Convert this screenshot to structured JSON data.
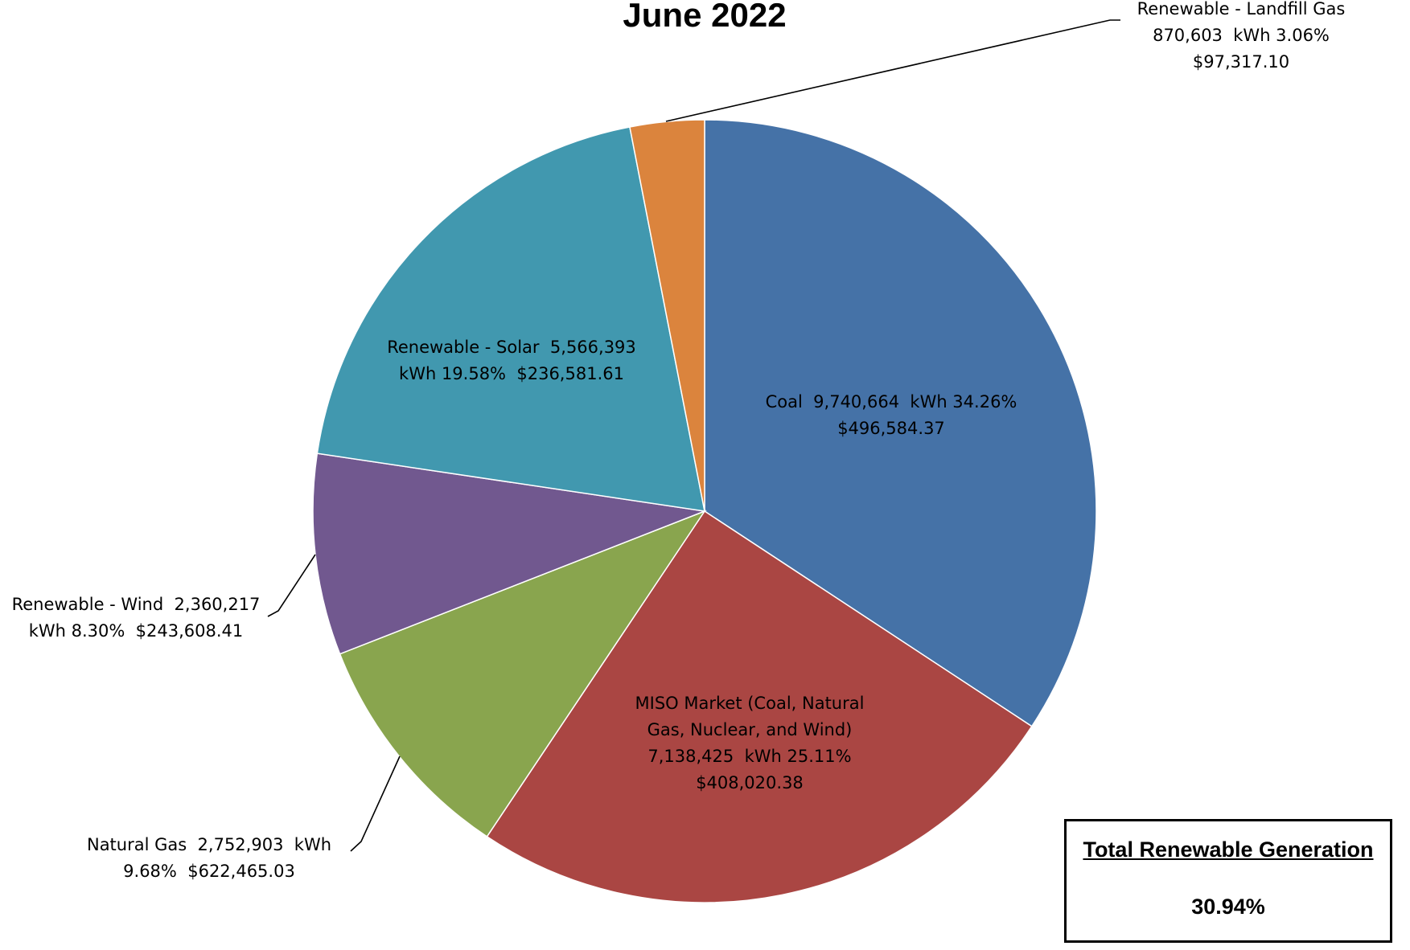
{
  "chart_data": {
    "type": "pie",
    "title": "June 2022",
    "start_angle_deg": 0,
    "direction": "clockwise",
    "slices": [
      {
        "name": "Coal",
        "kwh": "9,740,664",
        "percent": 34.26,
        "percent_label": "34.26%",
        "cost": "$496,584.37",
        "color": "#4572A7",
        "label_lines": [
          "Coal  9,740,664  kWh 34.26%",
          "$496,584.37"
        ]
      },
      {
        "name": "MISO Market (Coal, Natural Gas, Nuclear, and Wind)",
        "kwh": "7,138,425",
        "percent": 25.11,
        "percent_label": "25.11%",
        "cost": "$408,020.38",
        "color": "#AA4643",
        "label_lines": [
          "MISO Market (Coal, Natural",
          "Gas, Nuclear, and Wind)",
          "7,138,425  kWh 25.11%",
          "$408,020.38"
        ]
      },
      {
        "name": "Natural Gas",
        "kwh": "2,752,903",
        "percent": 9.68,
        "percent_label": "9.68%",
        "cost": "$622,465.03",
        "color": "#89A54E",
        "label_lines": [
          "Natural Gas  2,752,903  kWh",
          "9.68%  $622,465.03"
        ]
      },
      {
        "name": "Renewable - Wind",
        "kwh": "2,360,217",
        "percent": 8.3,
        "percent_label": "8.30%",
        "cost": "$243,608.41",
        "color": "#71588F",
        "label_lines": [
          "Renewable - Wind  2,360,217",
          "kWh 8.30%  $243,608.41"
        ]
      },
      {
        "name": "Renewable - Solar",
        "kwh": "5,566,393",
        "percent": 19.58,
        "percent_label": "19.58%",
        "cost": "$236,581.61",
        "color": "#4198AF",
        "label_lines": [
          "Renewable - Solar  5,566,393",
          "kWh 19.58%  $236,581.61"
        ]
      },
      {
        "name": "Renewable - Landfill Gas",
        "kwh": "870,603",
        "percent": 3.06,
        "percent_label": "3.06%",
        "cost": "$97,317.10",
        "color": "#DB843D",
        "label_lines": [
          "Renewable - Landfill Gas",
          "870,603  kWh 3.06%",
          "$97,317.10"
        ]
      }
    ],
    "legend": "none"
  },
  "summary_box": {
    "title": "Total Renewable Generation",
    "value": "30.94%"
  }
}
